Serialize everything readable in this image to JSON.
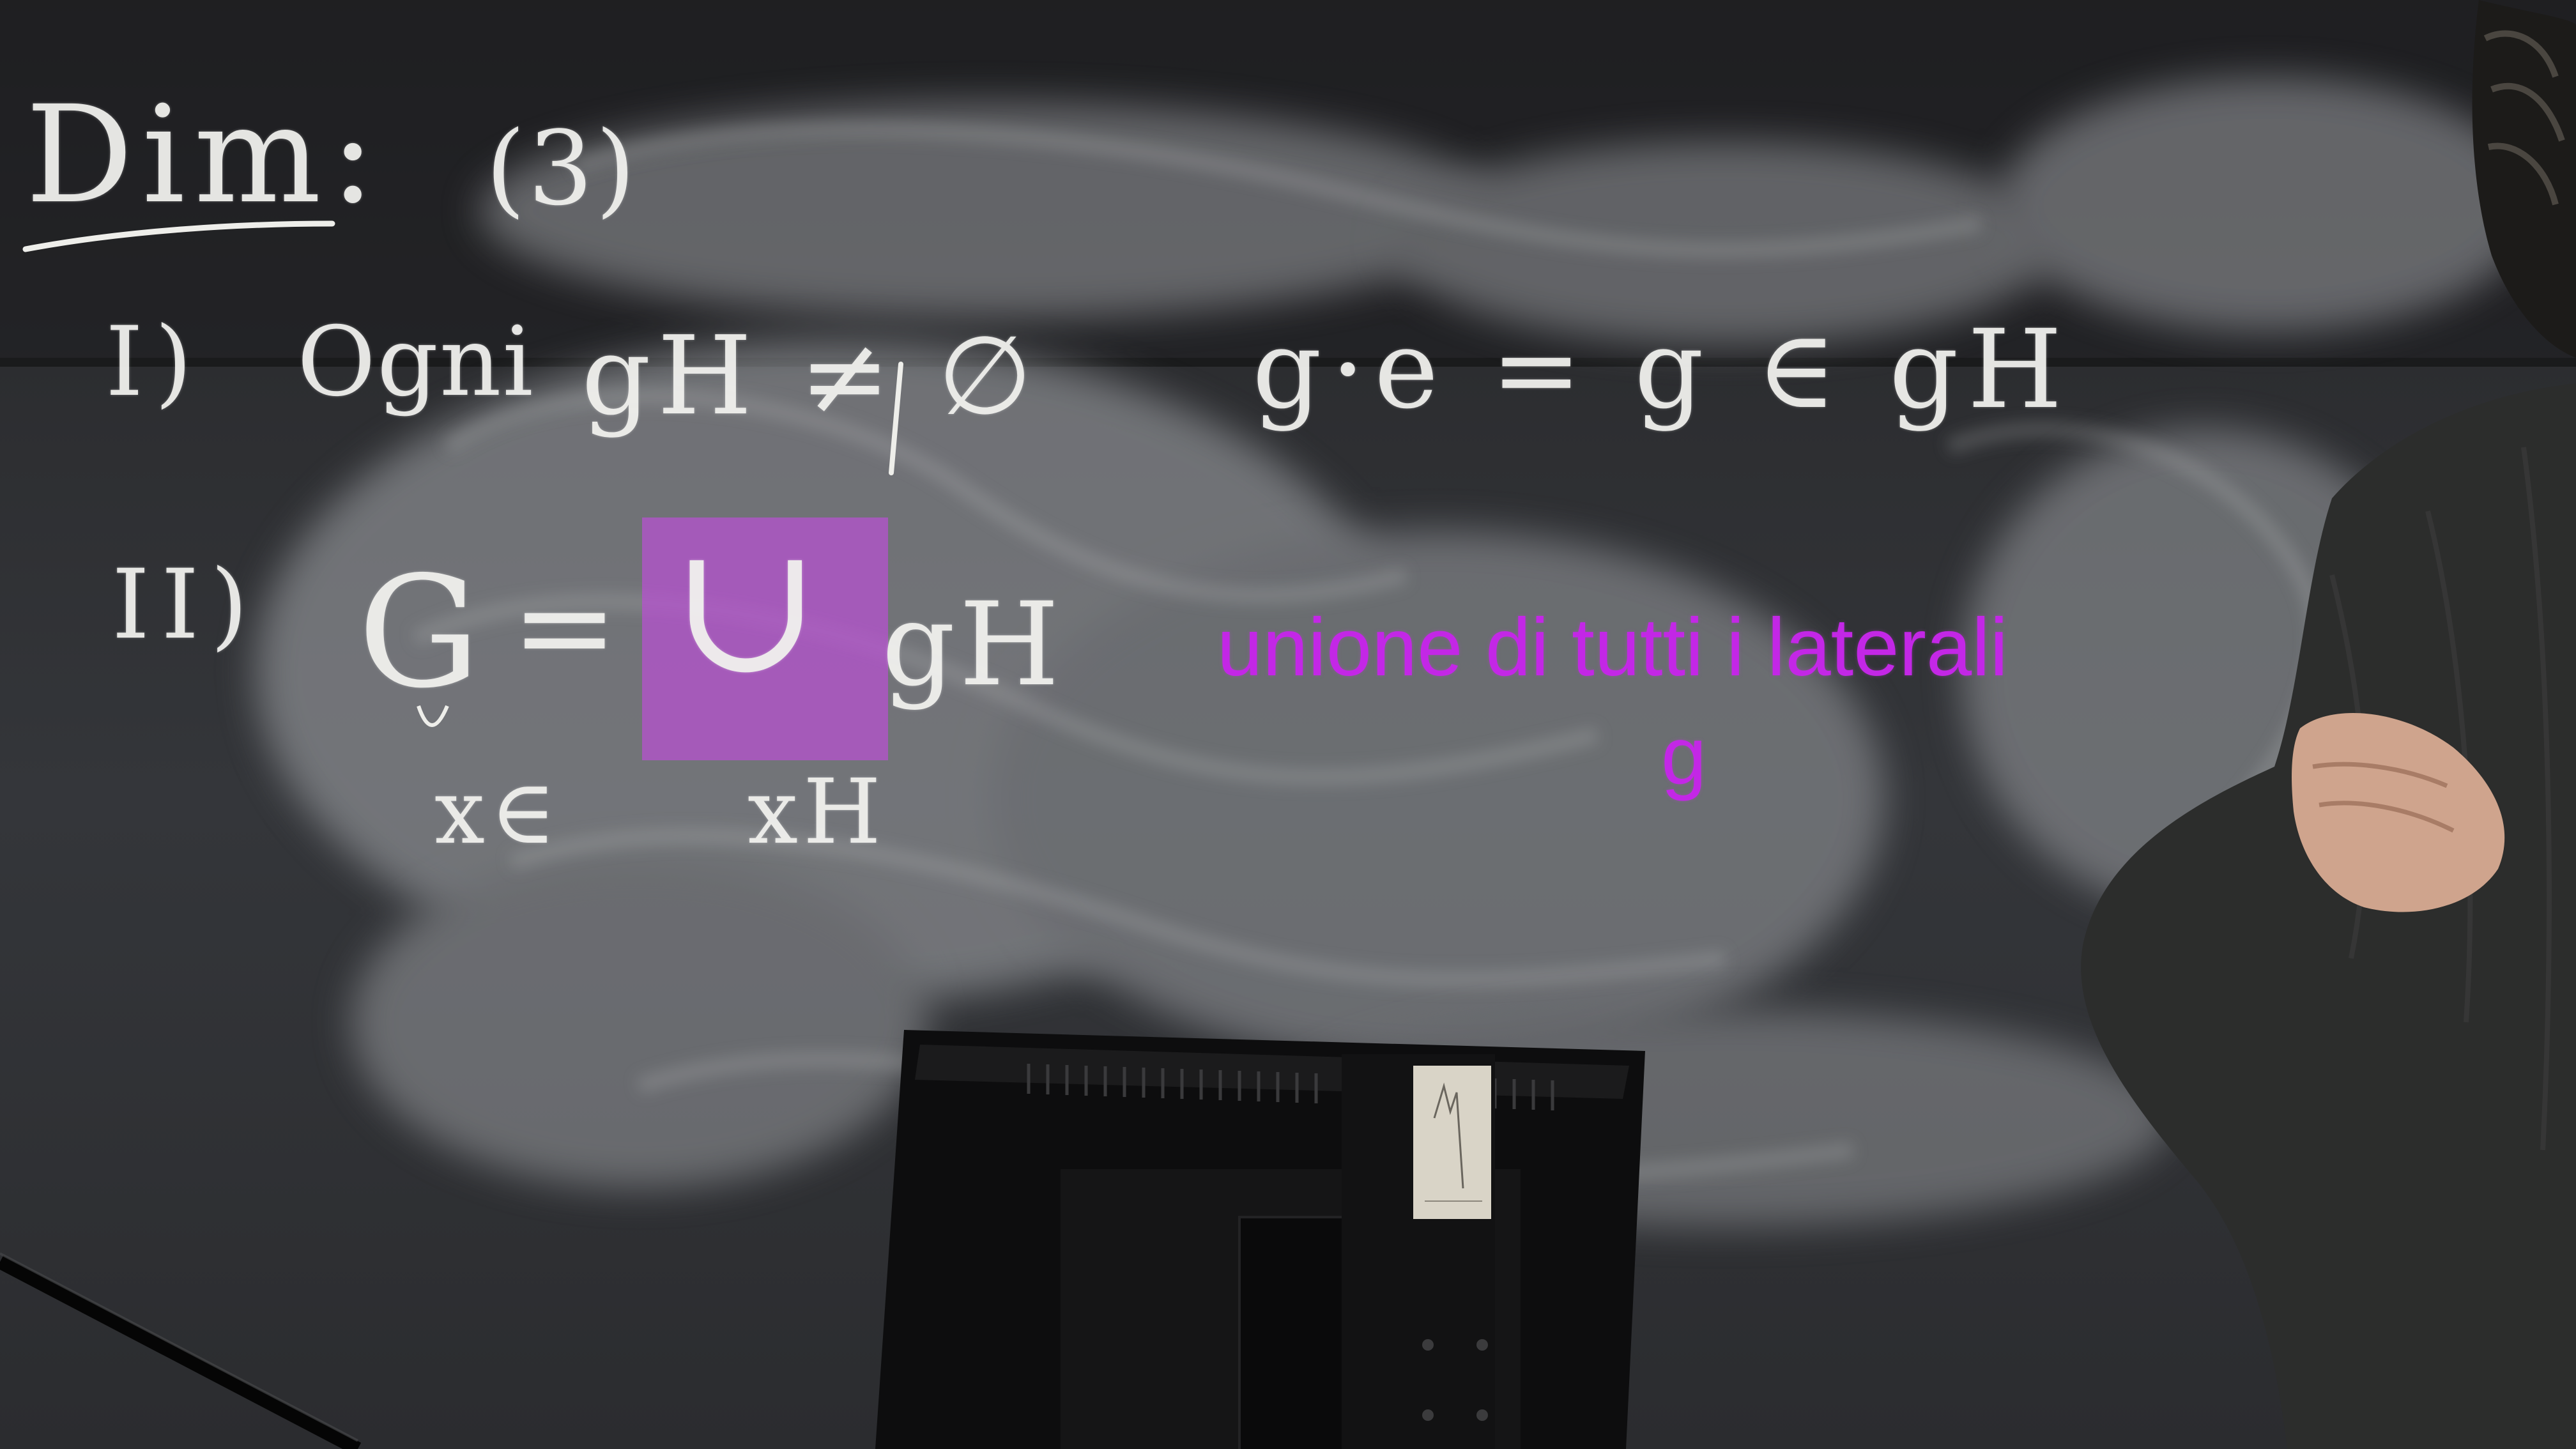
{
  "board": {
    "heading": "Dim:",
    "heading_num": "(3)",
    "line1_numeral": "I)",
    "line1_word": "Ogni",
    "line1_expr": "gH ≠ ∅",
    "line1_right": "g·e = g ∈ gH",
    "line2_numeral": "II)",
    "line2_G": "G",
    "line2_eq": "=",
    "line2_union": "∪",
    "line2_gH": "gH",
    "line2_sub_left": "x∈",
    "line2_sub_right": "xH"
  },
  "overlay": {
    "caption": "unione di tutti i laterali",
    "caption_line2": "g",
    "text_color": "#c327e6",
    "highlight_color": "#b850d2"
  },
  "colors": {
    "board": "#2c2d30",
    "chalk": "#f1f1ee",
    "smudge": "#9a9ca0",
    "monitor": "#0c0c0d",
    "sweater": "#2a2b2a"
  }
}
